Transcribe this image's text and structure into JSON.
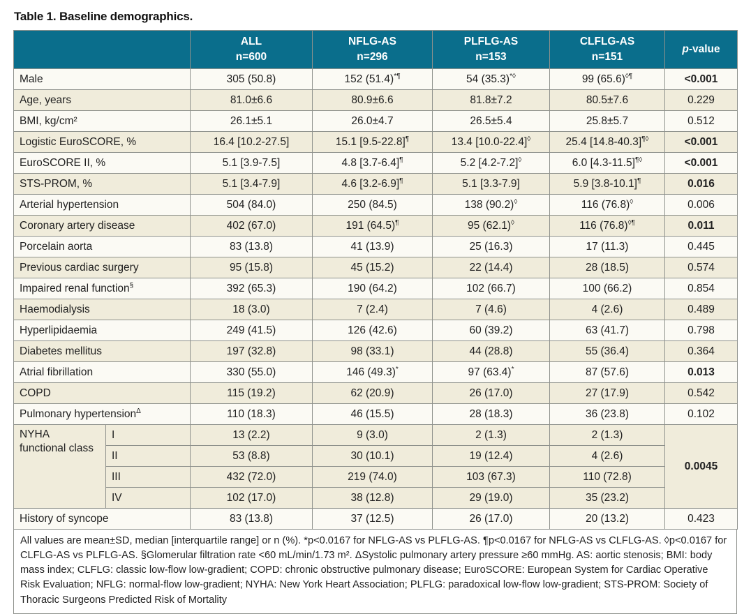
{
  "title": "Table 1. Baseline demographics.",
  "colors": {
    "header_bg": "#0a6e8c",
    "row_cream": "#f0ecdb",
    "row_white": "#fbfaf4",
    "border": "#8e918c"
  },
  "header": {
    "group_cols": [
      {
        "name": "ALL",
        "n": "n=600"
      },
      {
        "name": "NFLG-AS",
        "n": "n=296"
      },
      {
        "name": "PLFLG-AS",
        "n": "n=153"
      },
      {
        "name": "CLFLG-AS",
        "n": "n=151"
      }
    ],
    "pvalue_italic": "p",
    "pvalue_rest": "-value"
  },
  "rows_before_nyha": [
    {
      "label": "Male",
      "sup": "",
      "cells": [
        [
          "305 (50.8)",
          ""
        ],
        [
          "152 (51.4)",
          "*¶"
        ],
        [
          "54 (35.3)",
          "*◊"
        ],
        [
          "99 (65.6)",
          "◊¶"
        ]
      ],
      "p": "<0.001",
      "p_bold": true,
      "shade": "white"
    },
    {
      "label": "Age, years",
      "sup": "",
      "cells": [
        [
          "81.0±6.6",
          ""
        ],
        [
          "80.9±6.6",
          ""
        ],
        [
          "81.8±7.2",
          ""
        ],
        [
          "80.5±7.6",
          ""
        ]
      ],
      "p": "0.229",
      "p_bold": false,
      "shade": "cream"
    },
    {
      "label": "BMI, kg/cm²",
      "sup": "",
      "cells": [
        [
          "26.1±5.1",
          ""
        ],
        [
          "26.0±4.7",
          ""
        ],
        [
          "26.5±5.4",
          ""
        ],
        [
          "25.8±5.7",
          ""
        ]
      ],
      "p": "0.512",
      "p_bold": false,
      "shade": "white"
    },
    {
      "label": "Logistic EuroSCORE, %",
      "sup": "",
      "cells": [
        [
          "16.4 [10.2-27.5]",
          ""
        ],
        [
          "15.1 [9.5-22.8]",
          "¶"
        ],
        [
          "13.4 [10.0-22.4]",
          "◊"
        ],
        [
          "25.4 [14.8-40.3]",
          "¶◊"
        ]
      ],
      "p": "<0.001",
      "p_bold": true,
      "shade": "cream"
    },
    {
      "label": "EuroSCORE II, %",
      "sup": "",
      "cells": [
        [
          "5.1 [3.9-7.5]",
          ""
        ],
        [
          "4.8 [3.7-6.4]",
          "¶"
        ],
        [
          "5.2 [4.2-7.2]",
          "◊"
        ],
        [
          "6.0 [4.3-11.5]",
          "¶◊"
        ]
      ],
      "p": "<0.001",
      "p_bold": true,
      "shade": "white"
    },
    {
      "label": "STS-PROM, %",
      "sup": "",
      "cells": [
        [
          "5.1 [3.4-7.9]",
          ""
        ],
        [
          "4.6 [3.2-6.9]",
          "¶"
        ],
        [
          "5.1 [3.3-7.9]",
          ""
        ],
        [
          "5.9 [3.8-10.1]",
          "¶"
        ]
      ],
      "p": "0.016",
      "p_bold": true,
      "shade": "cream"
    },
    {
      "label": "Arterial hypertension",
      "sup": "",
      "cells": [
        [
          "504 (84.0)",
          ""
        ],
        [
          "250 (84.5)",
          ""
        ],
        [
          "138 (90.2)",
          "◊"
        ],
        [
          "116 (76.8)",
          "◊"
        ]
      ],
      "p": "0.006",
      "p_bold": false,
      "shade": "white"
    },
    {
      "label": "Coronary artery disease",
      "sup": "",
      "cells": [
        [
          "402 (67.0)",
          ""
        ],
        [
          "191 (64.5)",
          "¶"
        ],
        [
          "95 (62.1)",
          "◊"
        ],
        [
          "116 (76.8)",
          "◊¶"
        ]
      ],
      "p": "0.011",
      "p_bold": true,
      "shade": "cream"
    },
    {
      "label": "Porcelain aorta",
      "sup": "",
      "cells": [
        [
          "83 (13.8)",
          ""
        ],
        [
          "41 (13.9)",
          ""
        ],
        [
          "25 (16.3)",
          ""
        ],
        [
          "17 (11.3)",
          ""
        ]
      ],
      "p": "0.445",
      "p_bold": false,
      "shade": "white"
    },
    {
      "label": "Previous cardiac surgery",
      "sup": "",
      "cells": [
        [
          "95 (15.8)",
          ""
        ],
        [
          "45 (15.2)",
          ""
        ],
        [
          "22 (14.4)",
          ""
        ],
        [
          "28 (18.5)",
          ""
        ]
      ],
      "p": "0.574",
      "p_bold": false,
      "shade": "cream"
    },
    {
      "label": "Impaired renal function",
      "sup": "§",
      "cells": [
        [
          "392 (65.3)",
          ""
        ],
        [
          "190 (64.2)",
          ""
        ],
        [
          "102 (66.7)",
          ""
        ],
        [
          "100 (66.2)",
          ""
        ]
      ],
      "p": "0.854",
      "p_bold": false,
      "shade": "white"
    },
    {
      "label": "Haemodialysis",
      "sup": "",
      "cells": [
        [
          "18 (3.0)",
          ""
        ],
        [
          "7 (2.4)",
          ""
        ],
        [
          "7 (4.6)",
          ""
        ],
        [
          "4 (2.6)",
          ""
        ]
      ],
      "p": "0.489",
      "p_bold": false,
      "shade": "cream"
    },
    {
      "label": "Hyperlipidaemia",
      "sup": "",
      "cells": [
        [
          "249 (41.5)",
          ""
        ],
        [
          "126 (42.6)",
          ""
        ],
        [
          "60 (39.2)",
          ""
        ],
        [
          "63 (41.7)",
          ""
        ]
      ],
      "p": "0.798",
      "p_bold": false,
      "shade": "white"
    },
    {
      "label": "Diabetes mellitus",
      "sup": "",
      "cells": [
        [
          "197 (32.8)",
          ""
        ],
        [
          "98 (33.1)",
          ""
        ],
        [
          "44 (28.8)",
          ""
        ],
        [
          "55 (36.4)",
          ""
        ]
      ],
      "p": "0.364",
      "p_bold": false,
      "shade": "cream"
    },
    {
      "label": "Atrial fibrillation",
      "sup": "",
      "cells": [
        [
          "330 (55.0)",
          ""
        ],
        [
          "146 (49.3)",
          "*"
        ],
        [
          "97 (63.4)",
          "*"
        ],
        [
          "87 (57.6)",
          ""
        ]
      ],
      "p": "0.013",
      "p_bold": true,
      "shade": "white"
    },
    {
      "label": "COPD",
      "sup": "",
      "cells": [
        [
          "115 (19.2)",
          ""
        ],
        [
          "62 (20.9)",
          ""
        ],
        [
          "26 (17.0)",
          ""
        ],
        [
          "27 (17.9)",
          ""
        ]
      ],
      "p": "0.542",
      "p_bold": false,
      "shade": "cream"
    },
    {
      "label": "Pulmonary hypertension",
      "sup": "Δ",
      "cells": [
        [
          "110 (18.3)",
          ""
        ],
        [
          "46 (15.5)",
          ""
        ],
        [
          "28 (18.3)",
          ""
        ],
        [
          "36 (23.8)",
          ""
        ]
      ],
      "p": "0.102",
      "p_bold": false,
      "shade": "white"
    }
  ],
  "nyha": {
    "label": "NYHA\nfunctional class",
    "shade": "cream",
    "p": "0.0045",
    "p_bold": true,
    "rows": [
      {
        "cls": "I",
        "cells": [
          [
            "13 (2.2)",
            ""
          ],
          [
            "9 (3.0)",
            ""
          ],
          [
            "2 (1.3)",
            ""
          ],
          [
            "2 (1.3)",
            ""
          ]
        ]
      },
      {
        "cls": "II",
        "cells": [
          [
            "53 (8.8)",
            ""
          ],
          [
            "30 (10.1)",
            ""
          ],
          [
            "19 (12.4)",
            ""
          ],
          [
            "4 (2.6)",
            ""
          ]
        ]
      },
      {
        "cls": "III",
        "cells": [
          [
            "432 (72.0)",
            ""
          ],
          [
            "219 (74.0)",
            ""
          ],
          [
            "103 (67.3)",
            ""
          ],
          [
            "110 (72.8)",
            ""
          ]
        ]
      },
      {
        "cls": "IV",
        "cells": [
          [
            "102 (17.0)",
            ""
          ],
          [
            "38 (12.8)",
            ""
          ],
          [
            "29 (19.0)",
            ""
          ],
          [
            "35 (23.2)",
            ""
          ]
        ]
      }
    ]
  },
  "rows_after_nyha": [
    {
      "label": "History of syncope",
      "sup": "",
      "cells": [
        [
          "83 (13.8)",
          ""
        ],
        [
          "37 (12.5)",
          ""
        ],
        [
          "26 (17.0)",
          ""
        ],
        [
          "20 (13.2)",
          ""
        ]
      ],
      "p": "0.423",
      "p_bold": false,
      "shade": "white"
    }
  ],
  "footnote": "All values are mean±SD, median [interquartile range] or n (%). *p<0.0167 for NFLG-AS vs PLFLG-AS. ¶p<0.0167 for NFLG-AS vs CLFLG-AS. ◊p<0.0167 for CLFLG-AS vs PLFLG-AS. §Glomerular filtration rate <60 mL/min/1.73 m². ΔSystolic pulmonary artery pressure ≥60 mmHg. AS: aortic stenosis; BMI: body mass index; CLFLG: classic low-flow low-gradient; COPD: chronic obstructive pulmonary disease; EuroSCORE: European System for Cardiac Operative Risk Evaluation; NFLG: normal-flow low-gradient; NYHA: New York Heart Association; PLFLG: paradoxical low-flow low-gradient; STS-PROM: Society of Thoracic Surgeons Predicted Risk of Mortality"
}
